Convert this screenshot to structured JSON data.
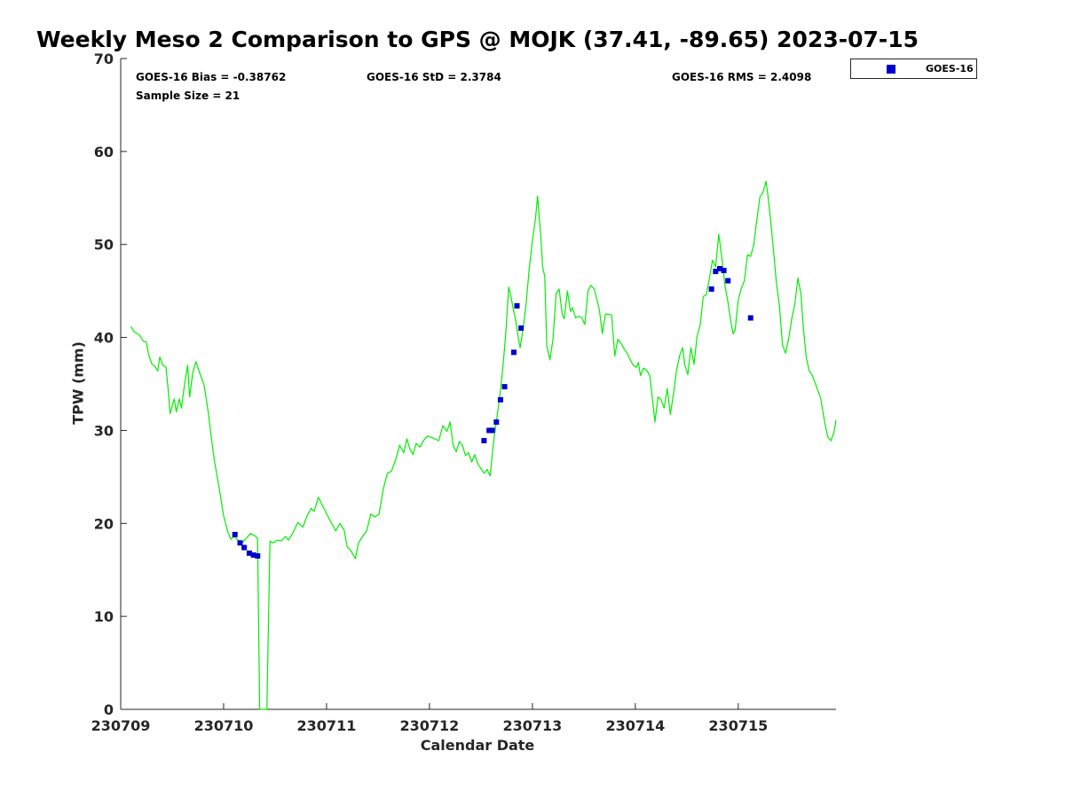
{
  "chart_data": {
    "type": "line",
    "title": "Weekly Meso 2 Comparison to GPS @ MOJK (37.41, -89.65) 2023-07-15",
    "xlabel": "Calendar Date",
    "ylabel": "TPW (mm)",
    "xlim": [
      0,
      6.95
    ],
    "ylim": [
      0,
      70
    ],
    "x_ticks": [
      0,
      1,
      2,
      3,
      4,
      5,
      6
    ],
    "x_tick_labels": [
      "230709",
      "230710",
      "230711",
      "230712",
      "230713",
      "230714",
      "230715"
    ],
    "y_ticks": [
      0,
      10,
      20,
      30,
      40,
      50,
      60,
      70
    ],
    "stats": {
      "bias": "GOES-16 Bias = -0.38762",
      "std": "GOES-16 StD = 2.3784",
      "rms": "GOES-16 RMS = 2.4098",
      "sample_size": "Sample Size = 21"
    },
    "legend": {
      "placement": "top-right",
      "label": "GOES-16"
    },
    "series": [
      {
        "kind": "line",
        "color": "#00ee00",
        "points": [
          [
            0.1,
            41.2
          ],
          [
            0.13,
            40.6
          ],
          [
            0.18,
            40.3
          ],
          [
            0.22,
            39.6
          ],
          [
            0.25,
            39.5
          ],
          [
            0.27,
            38.2
          ],
          [
            0.3,
            37.2
          ],
          [
            0.33,
            36.9
          ],
          [
            0.36,
            36.4
          ],
          [
            0.38,
            37.9
          ],
          [
            0.41,
            37.0
          ],
          [
            0.44,
            36.8
          ],
          [
            0.46,
            34.6
          ],
          [
            0.48,
            31.8
          ],
          [
            0.52,
            33.4
          ],
          [
            0.54,
            32.0
          ],
          [
            0.57,
            33.4
          ],
          [
            0.59,
            32.4
          ],
          [
            0.62,
            34.9
          ],
          [
            0.65,
            37.0
          ],
          [
            0.67,
            33.6
          ],
          [
            0.7,
            36.2
          ],
          [
            0.73,
            37.4
          ],
          [
            0.77,
            36.1
          ],
          [
            0.81,
            34.9
          ],
          [
            0.85,
            32.0
          ],
          [
            0.88,
            29.2
          ],
          [
            0.91,
            26.8
          ],
          [
            0.96,
            23.6
          ],
          [
            1.0,
            20.8
          ],
          [
            1.04,
            19.1
          ],
          [
            1.07,
            18.3
          ],
          [
            1.1,
            18.6
          ],
          [
            1.14,
            18.2
          ],
          [
            1.18,
            17.9
          ],
          [
            1.22,
            18.4
          ],
          [
            1.26,
            18.9
          ],
          [
            1.3,
            18.7
          ],
          [
            1.33,
            18.4
          ],
          [
            1.35,
            0
          ],
          [
            1.42,
            0
          ],
          [
            1.45,
            18.1
          ],
          [
            1.48,
            17.9
          ],
          [
            1.52,
            18.2
          ],
          [
            1.56,
            18.1
          ],
          [
            1.6,
            18.6
          ],
          [
            1.63,
            18.2
          ],
          [
            1.67,
            18.9
          ],
          [
            1.72,
            20.1
          ],
          [
            1.77,
            19.6
          ],
          [
            1.81,
            20.8
          ],
          [
            1.85,
            21.6
          ],
          [
            1.88,
            21.3
          ],
          [
            1.92,
            22.8
          ],
          [
            1.97,
            21.7
          ],
          [
            2.03,
            20.4
          ],
          [
            2.09,
            19.2
          ],
          [
            2.13,
            20.0
          ],
          [
            2.17,
            19.3
          ],
          [
            2.2,
            17.5
          ],
          [
            2.24,
            17.0
          ],
          [
            2.28,
            16.2
          ],
          [
            2.31,
            17.9
          ],
          [
            2.35,
            18.6
          ],
          [
            2.39,
            19.2
          ],
          [
            2.43,
            21.0
          ],
          [
            2.47,
            20.7
          ],
          [
            2.51,
            21.0
          ],
          [
            2.55,
            23.6
          ],
          [
            2.59,
            25.4
          ],
          [
            2.63,
            25.6
          ],
          [
            2.67,
            26.8
          ],
          [
            2.71,
            28.4
          ],
          [
            2.75,
            27.6
          ],
          [
            2.78,
            29.1
          ],
          [
            2.81,
            28.0
          ],
          [
            2.84,
            27.4
          ],
          [
            2.87,
            28.6
          ],
          [
            2.91,
            28.2
          ],
          [
            2.94,
            28.9
          ],
          [
            2.98,
            29.4
          ],
          [
            3.03,
            29.2
          ],
          [
            3.09,
            28.9
          ],
          [
            3.13,
            30.5
          ],
          [
            3.17,
            29.9
          ],
          [
            3.2,
            30.9
          ],
          [
            3.23,
            28.4
          ],
          [
            3.26,
            27.7
          ],
          [
            3.29,
            28.8
          ],
          [
            3.32,
            28.4
          ],
          [
            3.35,
            27.3
          ],
          [
            3.38,
            27.6
          ],
          [
            3.41,
            26.6
          ],
          [
            3.44,
            27.4
          ],
          [
            3.47,
            26.4
          ],
          [
            3.5,
            25.9
          ],
          [
            3.53,
            25.4
          ],
          [
            3.56,
            25.8
          ],
          [
            3.59,
            25.1
          ],
          [
            3.62,
            28.5
          ],
          [
            3.65,
            31.0
          ],
          [
            3.68,
            33.4
          ],
          [
            3.71,
            36.4
          ],
          [
            3.74,
            40.2
          ],
          [
            3.77,
            45.4
          ],
          [
            3.79,
            44.5
          ],
          [
            3.81,
            43.3
          ],
          [
            3.84,
            41.7
          ],
          [
            3.86,
            40.2
          ],
          [
            3.88,
            38.9
          ],
          [
            3.91,
            40.9
          ],
          [
            3.94,
            43.7
          ],
          [
            3.97,
            47.5
          ],
          [
            4.0,
            50.4
          ],
          [
            4.03,
            52.8
          ],
          [
            4.05,
            55.2
          ],
          [
            4.08,
            51.1
          ],
          [
            4.1,
            47.5
          ],
          [
            4.12,
            46.6
          ],
          [
            4.14,
            39.1
          ],
          [
            4.17,
            37.6
          ],
          [
            4.2,
            39.8
          ],
          [
            4.23,
            44.7
          ],
          [
            4.26,
            45.2
          ],
          [
            4.29,
            42.5
          ],
          [
            4.31,
            42.0
          ],
          [
            4.34,
            45.0
          ],
          [
            4.37,
            42.8
          ],
          [
            4.39,
            43.2
          ],
          [
            4.42,
            42.1
          ],
          [
            4.45,
            42.3
          ],
          [
            4.48,
            42.1
          ],
          [
            4.51,
            41.4
          ],
          [
            4.54,
            45.0
          ],
          [
            4.57,
            45.6
          ],
          [
            4.6,
            45.2
          ],
          [
            4.62,
            44.4
          ],
          [
            4.65,
            43.0
          ],
          [
            4.68,
            40.4
          ],
          [
            4.71,
            42.5
          ],
          [
            4.74,
            42.5
          ],
          [
            4.77,
            42.4
          ],
          [
            4.8,
            38.0
          ],
          [
            4.83,
            39.8
          ],
          [
            4.86,
            39.4
          ],
          [
            4.89,
            38.8
          ],
          [
            4.92,
            38.3
          ],
          [
            4.95,
            37.6
          ],
          [
            4.98,
            37.0
          ],
          [
            5.01,
            36.8
          ],
          [
            5.03,
            37.3
          ],
          [
            5.05,
            35.9
          ],
          [
            5.08,
            36.7
          ],
          [
            5.11,
            36.5
          ],
          [
            5.14,
            35.9
          ],
          [
            5.17,
            33.0
          ],
          [
            5.19,
            30.9
          ],
          [
            5.22,
            33.6
          ],
          [
            5.25,
            33.3
          ],
          [
            5.28,
            32.4
          ],
          [
            5.31,
            34.5
          ],
          [
            5.34,
            31.7
          ],
          [
            5.37,
            33.9
          ],
          [
            5.4,
            36.4
          ],
          [
            5.43,
            38.0
          ],
          [
            5.46,
            38.9
          ],
          [
            5.48,
            37.1
          ],
          [
            5.51,
            36.0
          ],
          [
            5.54,
            38.9
          ],
          [
            5.57,
            37.1
          ],
          [
            5.6,
            40.1
          ],
          [
            5.63,
            41.3
          ],
          [
            5.66,
            44.4
          ],
          [
            5.69,
            44.6
          ],
          [
            5.72,
            46.4
          ],
          [
            5.75,
            48.3
          ],
          [
            5.78,
            47.6
          ],
          [
            5.81,
            51.1
          ],
          [
            5.84,
            48.6
          ],
          [
            5.87,
            45.6
          ],
          [
            5.9,
            43.8
          ],
          [
            5.93,
            41.6
          ],
          [
            5.95,
            40.4
          ],
          [
            5.97,
            40.8
          ],
          [
            6.0,
            44.0
          ],
          [
            6.03,
            45.3
          ],
          [
            6.06,
            46.1
          ],
          [
            6.09,
            48.9
          ],
          [
            6.12,
            48.7
          ],
          [
            6.15,
            49.9
          ],
          [
            6.18,
            52.6
          ],
          [
            6.21,
            55.1
          ],
          [
            6.24,
            55.6
          ],
          [
            6.27,
            56.8
          ],
          [
            6.29,
            55.1
          ],
          [
            6.32,
            52.0
          ],
          [
            6.34,
            49.6
          ],
          [
            6.37,
            46.0
          ],
          [
            6.4,
            43.4
          ],
          [
            6.43,
            39.2
          ],
          [
            6.46,
            38.3
          ],
          [
            6.49,
            39.9
          ],
          [
            6.52,
            42.0
          ],
          [
            6.55,
            43.6
          ],
          [
            6.58,
            46.4
          ],
          [
            6.61,
            44.6
          ],
          [
            6.63,
            41.3
          ],
          [
            6.66,
            37.9
          ],
          [
            6.69,
            36.4
          ],
          [
            6.72,
            35.9
          ],
          [
            6.76,
            34.7
          ],
          [
            6.8,
            33.5
          ],
          [
            6.84,
            30.9
          ],
          [
            6.87,
            29.3
          ],
          [
            6.9,
            28.9
          ],
          [
            6.93,
            29.8
          ],
          [
            6.95,
            31.1
          ]
        ]
      },
      {
        "kind": "scatter",
        "name": "GOES-16",
        "color": "#0000cc",
        "points": [
          [
            1.11,
            18.8
          ],
          [
            1.16,
            17.9
          ],
          [
            1.2,
            17.4
          ],
          [
            1.25,
            16.8
          ],
          [
            1.29,
            16.6
          ],
          [
            1.33,
            16.5
          ],
          [
            3.53,
            28.9
          ],
          [
            3.58,
            30.0
          ],
          [
            3.61,
            30.0
          ],
          [
            3.65,
            30.9
          ],
          [
            3.69,
            33.3
          ],
          [
            3.73,
            34.7
          ],
          [
            3.82,
            38.4
          ],
          [
            3.85,
            43.4
          ],
          [
            3.89,
            41.0
          ],
          [
            5.74,
            45.2
          ],
          [
            5.78,
            47.1
          ],
          [
            5.82,
            47.4
          ],
          [
            5.86,
            47.2
          ],
          [
            5.9,
            46.1
          ],
          [
            6.12,
            42.1
          ]
        ]
      }
    ]
  }
}
